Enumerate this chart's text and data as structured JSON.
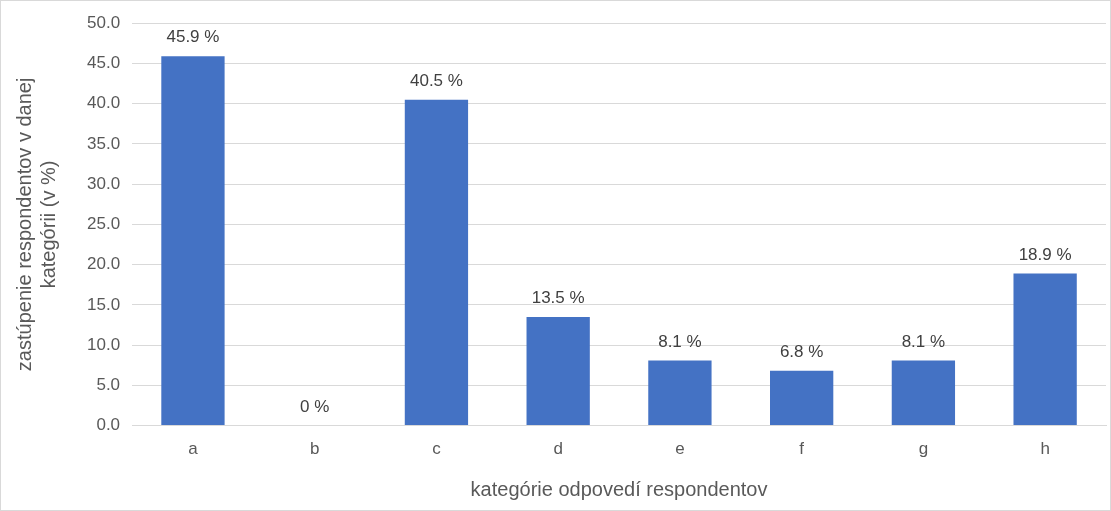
{
  "chart_data": {
    "type": "bar",
    "xlabel": "kategórie odpovedí respondentov",
    "ylabel": "zastúpenie respondentov v danej kategórii (v %)",
    "categories": [
      "a",
      "b",
      "c",
      "d",
      "e",
      "f",
      "g",
      "h"
    ],
    "values": [
      45.9,
      0,
      40.5,
      13.5,
      8.1,
      6.8,
      8.1,
      18.9
    ],
    "value_labels": [
      "45.9 %",
      "0 %",
      "40.5 %",
      "13.5 %",
      "8.1 %",
      "6.8 %",
      "8.1 %",
      "18.9 %"
    ],
    "color": "#4472c4",
    "ylim": [
      0,
      50
    ],
    "yticks": [
      {
        "value": 0,
        "label": "0.0"
      },
      {
        "value": 5,
        "label": "5.0"
      },
      {
        "value": 10,
        "label": "10.0"
      },
      {
        "value": 15,
        "label": "15.0"
      },
      {
        "value": 20,
        "label": "20.0"
      },
      {
        "value": 25,
        "label": "25.0"
      },
      {
        "value": 30,
        "label": "30.0"
      },
      {
        "value": 35,
        "label": "35.0"
      },
      {
        "value": 40,
        "label": "40.0"
      },
      {
        "value": 45,
        "label": "45.0"
      },
      {
        "value": 50,
        "label": "50.0"
      }
    ],
    "grid": "y",
    "legend": false
  }
}
